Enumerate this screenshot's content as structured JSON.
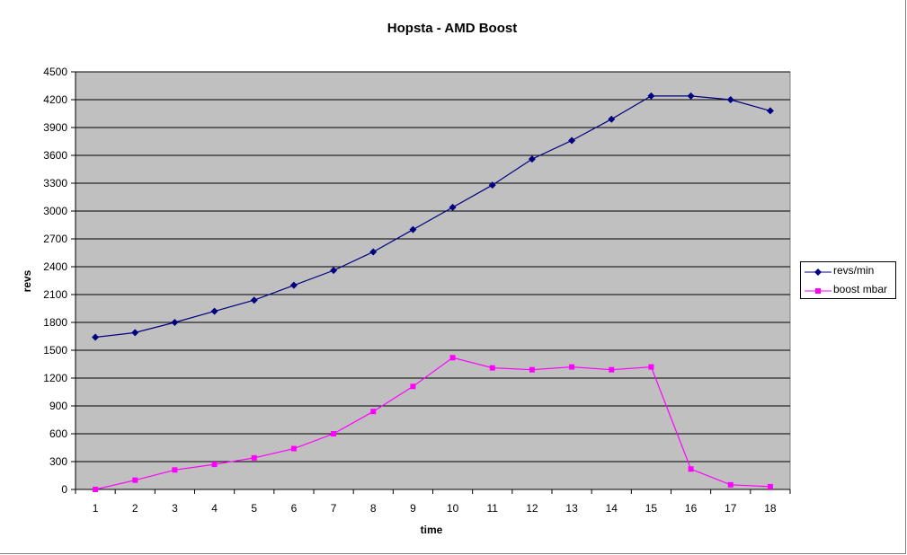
{
  "chart_data": {
    "type": "line",
    "title": "Hopsta - AMD Boost",
    "xlabel": "time",
    "ylabel": "revs",
    "x": [
      1,
      2,
      3,
      4,
      5,
      6,
      7,
      8,
      9,
      10,
      11,
      12,
      13,
      14,
      15,
      16,
      17,
      18
    ],
    "ylim": [
      0,
      4500
    ],
    "yticks": [
      0,
      300,
      600,
      900,
      1200,
      1500,
      1800,
      2100,
      2400,
      2700,
      3000,
      3300,
      3600,
      3900,
      4200,
      4500
    ],
    "grid": true,
    "legend_position": "right",
    "series": [
      {
        "name": "revs/min",
        "color": "#000080",
        "marker": "diamond",
        "values": [
          1640,
          1690,
          1800,
          1920,
          2040,
          2200,
          2360,
          2560,
          2800,
          3040,
          3280,
          3560,
          3760,
          3990,
          4240,
          4240,
          4200,
          4080
        ]
      },
      {
        "name": "boost mbar",
        "color": "#ff00ff",
        "marker": "square",
        "values": [
          0,
          100,
          210,
          270,
          340,
          440,
          600,
          840,
          1110,
          1420,
          1310,
          1290,
          1320,
          1290,
          1320,
          220,
          50,
          30
        ]
      }
    ]
  },
  "colors": {
    "plot_background": "#c0c0c0",
    "gridline": "#000000"
  }
}
